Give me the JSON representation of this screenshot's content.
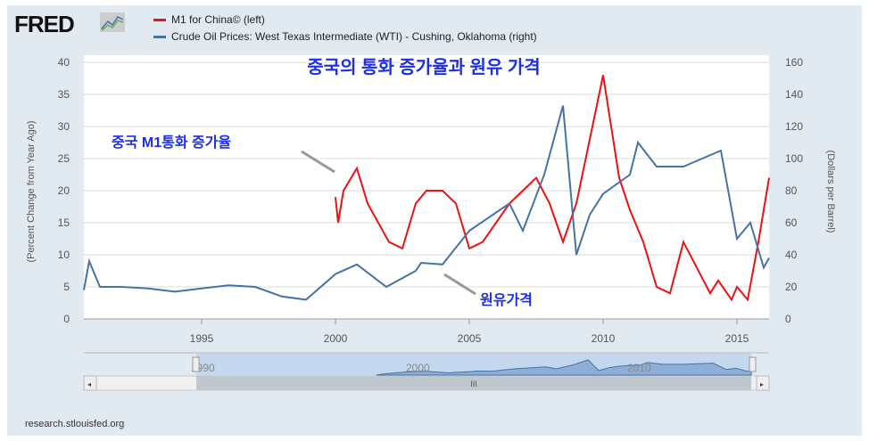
{
  "logo": "FRED",
  "footer": "research.stlouisfed.org",
  "colors": {
    "m1": "#ee1111",
    "oil": "#4572a7"
  },
  "chart_data": {
    "type": "line",
    "title": "중국의 통화 증가율과 원유 가격",
    "annotations": {
      "m1": "중국 M1통화 증가율",
      "oil": "원유가격"
    },
    "legend": [
      "M1 for China© (left)",
      "Crude Oil Prices: West Texas Intermediate (WTI) - Cushing, Oklahoma (right)"
    ],
    "ylabel_left": "(Percent Change from Year Ago)",
    "ylabel_right": "(Dollars per Barrel)",
    "xlim": [
      1990.6,
      2016.2
    ],
    "ylim_left": [
      0,
      40
    ],
    "ylim_right": [
      0,
      160
    ],
    "x_ticks": [
      "1995",
      "2000",
      "2005",
      "2010",
      "2015"
    ],
    "y_ticks_left": [
      "0",
      "5",
      "10",
      "15",
      "20",
      "25",
      "30",
      "35",
      "40"
    ],
    "y_ticks_right": [
      "0",
      "20",
      "40",
      "60",
      "80",
      "100",
      "120",
      "140",
      "160"
    ],
    "navigator_labels": [
      "1990",
      "2000",
      "2010"
    ],
    "navigator_scroll": "III",
    "series": [
      {
        "name": "M1 for China",
        "axis": "left",
        "x": [
          2000,
          2000.1,
          2000.3,
          2000.8,
          2001.2,
          2001.6,
          2002,
          2002.5,
          2003,
          2003.4,
          2004,
          2004.5,
          2005,
          2005.5,
          2006,
          2006.5,
          2007,
          2007.5,
          2008,
          2008.5,
          2009,
          2009.5,
          2010,
          2010.3,
          2010.6,
          2011,
          2011.5,
          2012,
          2012.5,
          2013,
          2013.5,
          2014,
          2014.3,
          2014.8,
          2015,
          2015.4,
          2015.8,
          2016.2
        ],
        "values": [
          19,
          15,
          20,
          23.5,
          18,
          15,
          12,
          11,
          18,
          20,
          20,
          18,
          11,
          12,
          15,
          18,
          20,
          22,
          18,
          12,
          18,
          28,
          38,
          30,
          22,
          17,
          12,
          5,
          4,
          12,
          8,
          4,
          6,
          3,
          5,
          3,
          12,
          22
        ]
      },
      {
        "name": "Crude Oil Prices (WTI)",
        "axis": "right",
        "x": [
          1990.6,
          1990.8,
          1991.2,
          1992,
          1993,
          1994,
          1995,
          1996,
          1997,
          1998,
          1998.9,
          2000,
          2000.8,
          2001.9,
          2003,
          2003.2,
          2004,
          2005,
          2006.5,
          2007,
          2007.8,
          2008.5,
          2009,
          2009.5,
          2010,
          2011,
          2011.3,
          2012,
          2013,
          2014.4,
          2015,
          2015.5,
          2016,
          2016.2
        ],
        "values": [
          18,
          36,
          20,
          20,
          19,
          17,
          19,
          21,
          20,
          14,
          12,
          28,
          34,
          20,
          30,
          35,
          34,
          55,
          72,
          55,
          90,
          133,
          40,
          65,
          78,
          90,
          110,
          95,
          95,
          105,
          50,
          60,
          32,
          38
        ]
      }
    ]
  }
}
